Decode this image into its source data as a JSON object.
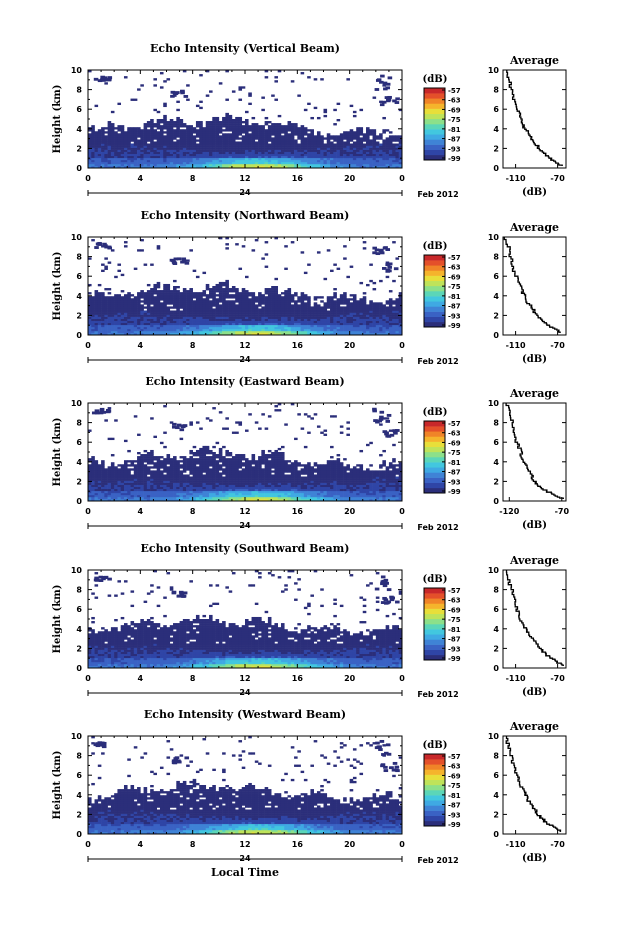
{
  "xlabel": "Local Time",
  "colormap": [
    "#2b2e7a",
    "#2f45a6",
    "#3a62c4",
    "#3f83d6",
    "#3fa9e3",
    "#42c7df",
    "#5bd6b8",
    "#8ce08a",
    "#bfe35a",
    "#e8df3a",
    "#f5b42c",
    "#f08428",
    "#e4502a",
    "#c8282a"
  ],
  "chart_data": [
    {
      "type": "heatmap",
      "title": "Echo Intensity (Vertical Beam)",
      "ylabel": "Height (km)",
      "yticks": [
        0,
        2,
        4,
        6,
        8,
        10
      ],
      "ylim": [
        0,
        10
      ],
      "xticks": [
        "0",
        "4",
        "8",
        "12",
        "16",
        "20",
        "0"
      ],
      "xlim": [
        0,
        24
      ],
      "date_marker": "24",
      "date_label": "Feb 2012",
      "colorbar_unit": "(dB)",
      "colorbar_ticks": [
        "-57",
        "-63",
        "-69",
        "-75",
        "-81",
        "-87",
        "-93",
        "-99"
      ],
      "profile_title": "Average",
      "profile_xlabel": "(dB)",
      "profile_xticks": [
        "-110",
        "-70"
      ],
      "profile_xlim": [
        -122,
        -62
      ],
      "profile_ylim": [
        0,
        10
      ],
      "profile_yticks": [
        0,
        2,
        4,
        6,
        8,
        10
      ],
      "profile": [
        [
          0.2,
          -66
        ],
        [
          0.6,
          -72
        ],
        [
          1.0,
          -78
        ],
        [
          1.5,
          -84
        ],
        [
          2.0,
          -88
        ],
        [
          2.6,
          -92
        ],
        [
          3.2,
          -96
        ],
        [
          3.8,
          -100
        ],
        [
          4.4,
          -104
        ],
        [
          5.2,
          -106
        ],
        [
          6.0,
          -109
        ],
        [
          7.0,
          -113
        ],
        [
          8.0,
          -114
        ],
        [
          9.0,
          -117
        ],
        [
          10.0,
          -120
        ]
      ]
    },
    {
      "type": "heatmap",
      "title": "Echo Intensity (Northward Beam)",
      "ylabel": "Height (km)",
      "yticks": [
        0,
        2,
        4,
        6,
        8,
        10
      ],
      "ylim": [
        0,
        10
      ],
      "xticks": [
        "0",
        "4",
        "8",
        "12",
        "16",
        "20",
        "0"
      ],
      "xlim": [
        0,
        24
      ],
      "date_marker": "24",
      "date_label": "Feb 2012",
      "colorbar_unit": "(dB)",
      "colorbar_ticks": [
        "-57",
        "-63",
        "-69",
        "-75",
        "-81",
        "-87",
        "-93",
        "-99"
      ],
      "profile_title": "Average",
      "profile_xlabel": "(dB)",
      "profile_xticks": [
        "-110",
        "-70"
      ],
      "profile_xlim": [
        -122,
        -62
      ],
      "profile_ylim": [
        0,
        10
      ],
      "profile_yticks": [
        0,
        2,
        4,
        6,
        8,
        10
      ],
      "profile": [
        [
          0.2,
          -67
        ],
        [
          0.6,
          -73
        ],
        [
          1.0,
          -79
        ],
        [
          1.5,
          -85
        ],
        [
          2.0,
          -90
        ],
        [
          2.6,
          -94
        ],
        [
          3.2,
          -98
        ],
        [
          3.8,
          -101
        ],
        [
          4.4,
          -104
        ],
        [
          5.2,
          -107
        ],
        [
          6.0,
          -110
        ],
        [
          7.0,
          -113
        ],
        [
          8.0,
          -115
        ],
        [
          9.0,
          -117
        ],
        [
          10.0,
          -120
        ]
      ]
    },
    {
      "type": "heatmap",
      "title": "Echo Intensity (Eastward Beam)",
      "ylabel": "Height (km)",
      "yticks": [
        0,
        2,
        4,
        6,
        8,
        10
      ],
      "ylim": [
        0,
        10
      ],
      "xticks": [
        "0",
        "4",
        "8",
        "12",
        "16",
        "20",
        "0"
      ],
      "xlim": [
        0,
        24
      ],
      "date_marker": "24",
      "date_label": "Feb 2012",
      "colorbar_unit": "(dB)",
      "colorbar_ticks": [
        "-57",
        "-63",
        "-69",
        "-75",
        "-81",
        "-87",
        "-93",
        "-99"
      ],
      "profile_title": "Average",
      "profile_xlabel": "(dB)",
      "profile_xticks": [
        "-120",
        "-70"
      ],
      "profile_xlim": [
        -126,
        -66
      ],
      "profile_ylim": [
        0,
        10
      ],
      "profile_yticks": [
        0,
        2,
        4,
        6,
        8,
        10
      ],
      "profile": [
        [
          0.2,
          -70
        ],
        [
          0.6,
          -78
        ],
        [
          1.0,
          -85
        ],
        [
          1.5,
          -92
        ],
        [
          2.0,
          -96
        ],
        [
          2.6,
          -99
        ],
        [
          3.2,
          -103
        ],
        [
          3.8,
          -106
        ],
        [
          4.4,
          -108
        ],
        [
          5.2,
          -110
        ],
        [
          6.0,
          -113
        ],
        [
          7.0,
          -115
        ],
        [
          8.0,
          -117
        ],
        [
          9.0,
          -120
        ],
        [
          10.0,
          -123
        ]
      ]
    },
    {
      "type": "heatmap",
      "title": "Echo Intensity (Southward Beam)",
      "ylabel": "Height (km)",
      "yticks": [
        0,
        2,
        4,
        6,
        8,
        10
      ],
      "ylim": [
        0,
        10
      ],
      "xticks": [
        "0",
        "4",
        "8",
        "12",
        "16",
        "20",
        "0"
      ],
      "xlim": [
        0,
        24
      ],
      "date_marker": "24",
      "date_label": "Feb 2012",
      "colorbar_unit": "(dB)",
      "colorbar_ticks": [
        "-57",
        "-63",
        "-69",
        "-75",
        "-81",
        "-87",
        "-93",
        "-99"
      ],
      "profile_title": "Average",
      "profile_xlabel": "(dB)",
      "profile_xticks": [
        "-110",
        "-70"
      ],
      "profile_xlim": [
        -122,
        -62
      ],
      "profile_ylim": [
        0,
        10
      ],
      "profile_yticks": [
        0,
        2,
        4,
        6,
        8,
        10
      ],
      "profile": [
        [
          0.2,
          -65
        ],
        [
          0.6,
          -71
        ],
        [
          1.0,
          -77
        ],
        [
          1.5,
          -83
        ],
        [
          2.0,
          -88
        ],
        [
          2.6,
          -92
        ],
        [
          3.2,
          -96
        ],
        [
          3.8,
          -100
        ],
        [
          4.4,
          -103
        ],
        [
          5.2,
          -106
        ],
        [
          6.0,
          -109
        ],
        [
          7.0,
          -112
        ],
        [
          8.0,
          -114
        ],
        [
          9.0,
          -117
        ],
        [
          10.0,
          -119
        ]
      ]
    },
    {
      "type": "heatmap",
      "title": "Echo Intensity (Westward Beam)",
      "ylabel": "Height (km)",
      "yticks": [
        0,
        2,
        4,
        6,
        8,
        10
      ],
      "ylim": [
        0,
        10
      ],
      "xticks": [
        "0",
        "4",
        "8",
        "12",
        "16",
        "20",
        "0"
      ],
      "xlim": [
        0,
        24
      ],
      "date_marker": "24",
      "date_label": "Feb 2012",
      "colorbar_unit": "(dB)",
      "colorbar_ticks": [
        "-57",
        "-63",
        "-69",
        "-75",
        "-81",
        "-87",
        "-93",
        "-99"
      ],
      "profile_title": "Average",
      "profile_xlabel": "(dB)",
      "profile_xticks": [
        "-110",
        "-70"
      ],
      "profile_xlim": [
        -122,
        -62
      ],
      "profile_ylim": [
        0,
        10
      ],
      "profile_yticks": [
        0,
        2,
        4,
        6,
        8,
        10
      ],
      "profile": [
        [
          0.2,
          -67
        ],
        [
          0.6,
          -73
        ],
        [
          1.0,
          -79
        ],
        [
          1.5,
          -85
        ],
        [
          2.0,
          -89
        ],
        [
          2.6,
          -93
        ],
        [
          3.2,
          -97
        ],
        [
          3.8,
          -100
        ],
        [
          4.4,
          -103
        ],
        [
          5.2,
          -106
        ],
        [
          6.0,
          -109
        ],
        [
          7.0,
          -112
        ],
        [
          8.0,
          -114
        ],
        [
          9.0,
          -117
        ],
        [
          10.0,
          -120
        ]
      ]
    }
  ]
}
